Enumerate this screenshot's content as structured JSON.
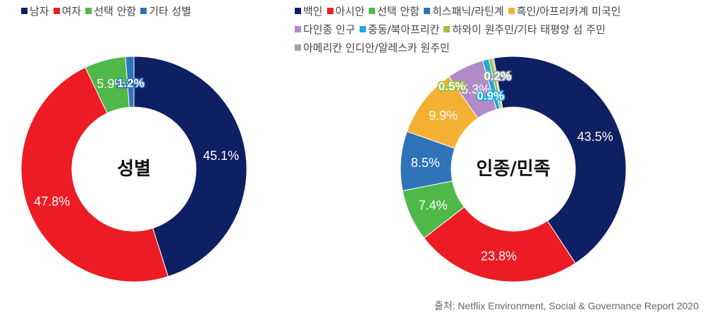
{
  "colors": {
    "navy": "#0f1f63",
    "red": "#ed1b24",
    "green": "#4fb848",
    "blue": "#2f73b9",
    "orange": "#f4b133",
    "purple": "#b08bc4",
    "cyan": "#1fa9e1",
    "lime": "#9bc13b",
    "gray": "#9aa4ab"
  },
  "chart_data": [
    {
      "type": "pie",
      "variant": "donut",
      "center_label": "성별",
      "legend_position": "top",
      "series": [
        {
          "name": "남자",
          "value": 45.1,
          "label": "45.1%",
          "color": "#0f1f63"
        },
        {
          "name": "여자",
          "value": 47.8,
          "label": "47.8%",
          "color": "#ed1b24"
        },
        {
          "name": "선택 안함",
          "value": 5.9,
          "label": "5.9%",
          "color": "#4fb848"
        },
        {
          "name": "기타 성별",
          "value": 1.2,
          "label": "1.2%",
          "color": "#2f73b9"
        }
      ]
    },
    {
      "type": "pie",
      "variant": "donut",
      "center_label": "인종/민족",
      "legend_position": "top",
      "series": [
        {
          "name": "백인",
          "value": 43.5,
          "label": "43.5%",
          "color": "#0f1f63"
        },
        {
          "name": "아시안",
          "value": 23.8,
          "label": "23.8%",
          "color": "#ed1b24"
        },
        {
          "name": "선택 안함",
          "value": 7.4,
          "label": "7.4%",
          "color": "#4fb848"
        },
        {
          "name": "히스패닉/라틴계",
          "value": 8.5,
          "label": "8.5%",
          "color": "#2f73b9"
        },
        {
          "name": "흑인/아프리카계 미국인",
          "value": 9.9,
          "label": "9.9%",
          "color": "#f4b133"
        },
        {
          "name": "다인종 인구",
          "value": 5.3,
          "label": "5.3%",
          "color": "#b08bc4"
        },
        {
          "name": "중동/북아프리칸",
          "value": 0.9,
          "label": "0.9%",
          "color": "#1fa9e1"
        },
        {
          "name": "하와이 원주민/기타 태평양 섬 주민",
          "value": 0.5,
          "label": "0.5%",
          "color": "#9bc13b"
        },
        {
          "name": "아메리칸 인디안/알레스카 원주민",
          "value": 0.2,
          "label": "0.2%",
          "color": "#9aa4ab"
        }
      ]
    }
  ],
  "source": "출처: Netflix Environment, Social & Governance Report 2020"
}
